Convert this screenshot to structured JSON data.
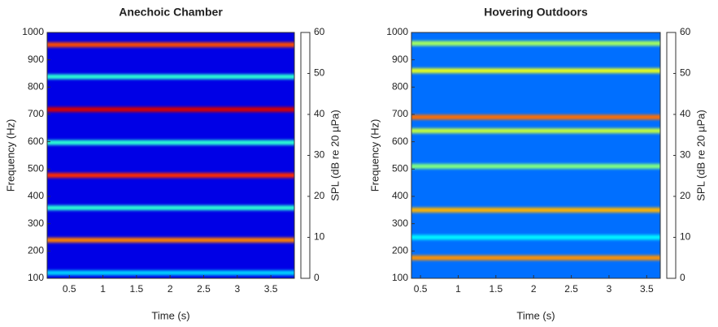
{
  "chart_data": [
    {
      "type": "heatmap",
      "title": "Anechoic Chamber",
      "x_label": "Time (s)",
      "y_label": "Frequency (Hz)",
      "colorbar_label": "SPL (dB re 20 µPa)",
      "xlim": [
        0.17,
        3.85
      ],
      "xticks": [
        0.5,
        1,
        1.5,
        2,
        2.5,
        3,
        3.5
      ],
      "ylim": [
        100,
        1000
      ],
      "yticks": [
        100,
        200,
        300,
        400,
        500,
        600,
        700,
        800,
        900,
        1000
      ],
      "clim": [
        0,
        60
      ],
      "cticks": [
        0,
        10,
        20,
        30,
        40,
        50,
        60
      ],
      "background": 6,
      "bands": [
        {
          "frequency": 955,
          "level": 48
        },
        {
          "frequency": 838,
          "level": 25
        },
        {
          "frequency": 718,
          "level": 55
        },
        {
          "frequency": 597,
          "level": 25
        },
        {
          "frequency": 477,
          "level": 50
        },
        {
          "frequency": 358,
          "level": 25
        },
        {
          "frequency": 240,
          "level": 45
        },
        {
          "frequency": 120,
          "level": 20
        }
      ]
    },
    {
      "type": "heatmap",
      "title": "Hovering Outdoors",
      "x_label": "Time (s)",
      "y_label": "Frequency (Hz)",
      "colorbar_label": "SPL (dB re 20 µPa)",
      "xlim": [
        0.38,
        3.68
      ],
      "xticks": [
        0.5,
        1,
        1.5,
        2,
        2.5,
        3,
        3.5
      ],
      "ylim": [
        100,
        1000
      ],
      "yticks": [
        100,
        200,
        300,
        400,
        500,
        600,
        700,
        800,
        900,
        1000
      ],
      "clim": [
        0,
        60
      ],
      "cticks": [
        0,
        10,
        20,
        30,
        40,
        50,
        60
      ],
      "background": 14,
      "bands": [
        {
          "frequency": 960,
          "level": 32
        },
        {
          "frequency": 860,
          "level": 36
        },
        {
          "frequency": 690,
          "level": 46
        },
        {
          "frequency": 640,
          "level": 34
        },
        {
          "frequency": 510,
          "level": 30
        },
        {
          "frequency": 350,
          "level": 42
        },
        {
          "frequency": 250,
          "level": 22
        },
        {
          "frequency": 175,
          "level": 44
        }
      ]
    }
  ]
}
